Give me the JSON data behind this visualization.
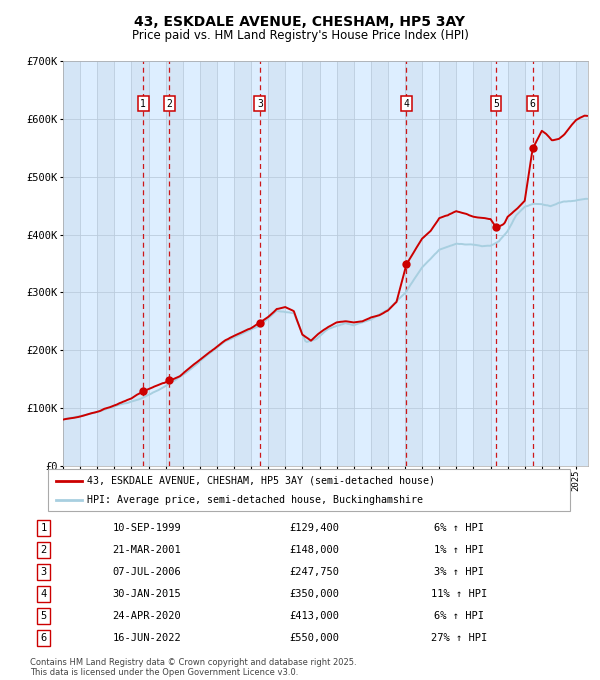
{
  "title": "43, ESKDALE AVENUE, CHESHAM, HP5 3AY",
  "subtitle": "Price paid vs. HM Land Registry's House Price Index (HPI)",
  "legend_line1": "43, ESKDALE AVENUE, CHESHAM, HP5 3AY (semi-detached house)",
  "legend_line2": "HPI: Average price, semi-detached house, Buckinghamshire",
  "footer1": "Contains HM Land Registry data © Crown copyright and database right 2025.",
  "footer2": "This data is licensed under the Open Government Licence v3.0.",
  "transactions": [
    {
      "num": 1,
      "date": "10-SEP-1999",
      "price": 129400,
      "hpi_pct": "6% ↑ HPI",
      "year": 1999.69
    },
    {
      "num": 2,
      "date": "21-MAR-2001",
      "price": 148000,
      "hpi_pct": "1% ↑ HPI",
      "year": 2001.22
    },
    {
      "num": 3,
      "date": "07-JUL-2006",
      "price": 247750,
      "hpi_pct": "3% ↑ HPI",
      "year": 2006.51
    },
    {
      "num": 4,
      "date": "30-JAN-2015",
      "price": 350000,
      "hpi_pct": "11% ↑ HPI",
      "year": 2015.08
    },
    {
      "num": 5,
      "date": "24-APR-2020",
      "price": 413000,
      "hpi_pct": "6% ↑ HPI",
      "year": 2020.32
    },
    {
      "num": 6,
      "date": "16-JUN-2022",
      "price": 550000,
      "hpi_pct": "27% ↑ HPI",
      "year": 2022.46
    }
  ],
  "hpi_color": "#a8cfe0",
  "price_color": "#cc0000",
  "dot_color": "#cc0000",
  "vline_color": "#cc0000",
  "bg_color": "#ddeeff",
  "plot_bg": "#ffffff",
  "grid_color": "#bbccdd",
  "ylim": [
    0,
    700000
  ],
  "xlim_start": 1995.0,
  "xlim_end": 2025.7,
  "ytick_labels": [
    "£0",
    "£100K",
    "£200K",
    "£300K",
    "£400K",
    "£500K",
    "£600K",
    "£700K"
  ],
  "ytick_values": [
    0,
    100000,
    200000,
    300000,
    400000,
    500000,
    600000,
    700000
  ]
}
